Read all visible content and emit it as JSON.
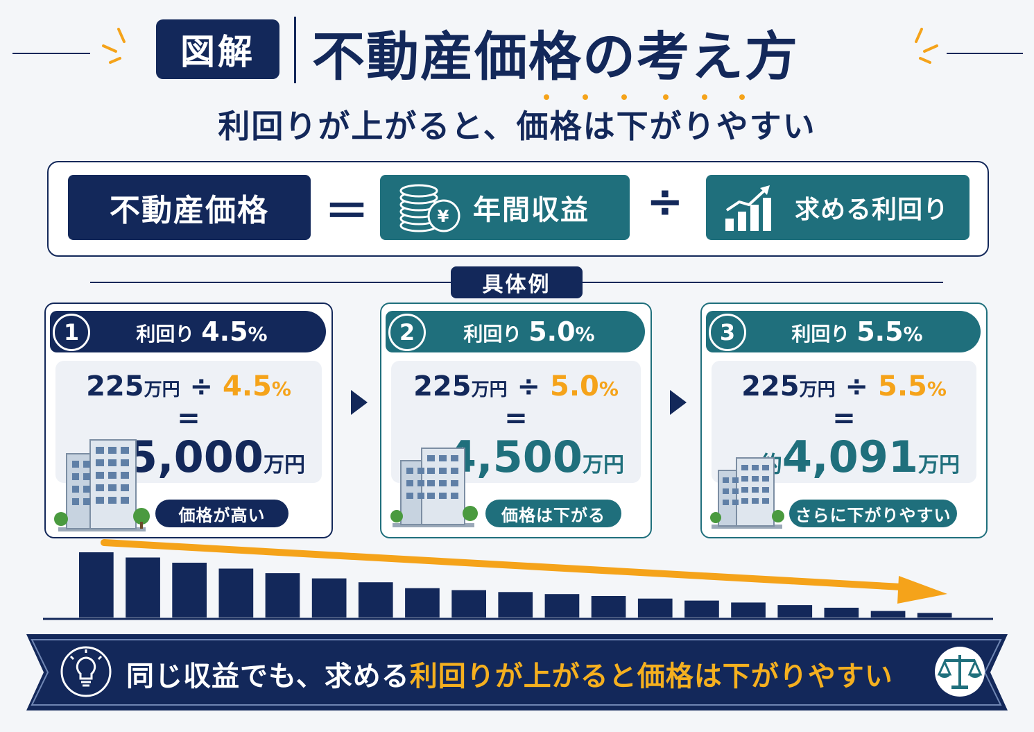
{
  "header": {
    "badge": "図解",
    "title": "不動産価格の考え方",
    "subtitle": "利回りが上がると、価格は下がりやすい"
  },
  "formula": {
    "price": "不動産価格",
    "equals": "＝",
    "income": "年間収益",
    "divide": "÷",
    "yield": "求める利回り",
    "yen_symbol": "¥"
  },
  "example_label": "具体例",
  "cards": [
    {
      "number": "1",
      "label_prefix": "利回り",
      "rate": "4.5",
      "percent": "%",
      "income_value": "225",
      "income_unit": "万円",
      "divide": "÷",
      "calc_rate": "4.5",
      "calc_percent": "%",
      "equals": "=",
      "result_prefix": "",
      "result_value": "5,000",
      "result_unit": "万円",
      "pill": "価格が高い",
      "color": "#13285a"
    },
    {
      "number": "2",
      "label_prefix": "利回り",
      "rate": "5.0",
      "percent": "%",
      "income_value": "225",
      "income_unit": "万円",
      "divide": "÷",
      "calc_rate": "5.0",
      "calc_percent": "%",
      "equals": "=",
      "result_prefix": "",
      "result_value": "4,500",
      "result_unit": "万円",
      "pill": "価格は下がる",
      "color": "#1f6f7c"
    },
    {
      "number": "3",
      "label_prefix": "利回り",
      "rate": "5.5",
      "percent": "%",
      "income_value": "225",
      "income_unit": "万円",
      "divide": "÷",
      "calc_rate": "5.5",
      "calc_percent": "%",
      "equals": "=",
      "result_prefix": "約",
      "result_value": "4,091",
      "result_unit": "万円",
      "pill": "さらに下がりやすい",
      "color": "#1f6f7c"
    }
  ],
  "chart_data": {
    "type": "bar",
    "values": [
      100,
      92,
      84,
      75,
      68,
      60,
      54,
      45,
      42,
      39,
      36,
      33,
      29,
      26,
      23,
      19,
      15,
      10,
      7
    ]
  },
  "footer": {
    "text_before": "同じ収益でも、求める",
    "text_highlight": "利回りが上がると価格は下がりやすい"
  },
  "colors": {
    "navy": "#13285a",
    "teal": "#1f6f7c",
    "orange": "#f5a31a"
  }
}
